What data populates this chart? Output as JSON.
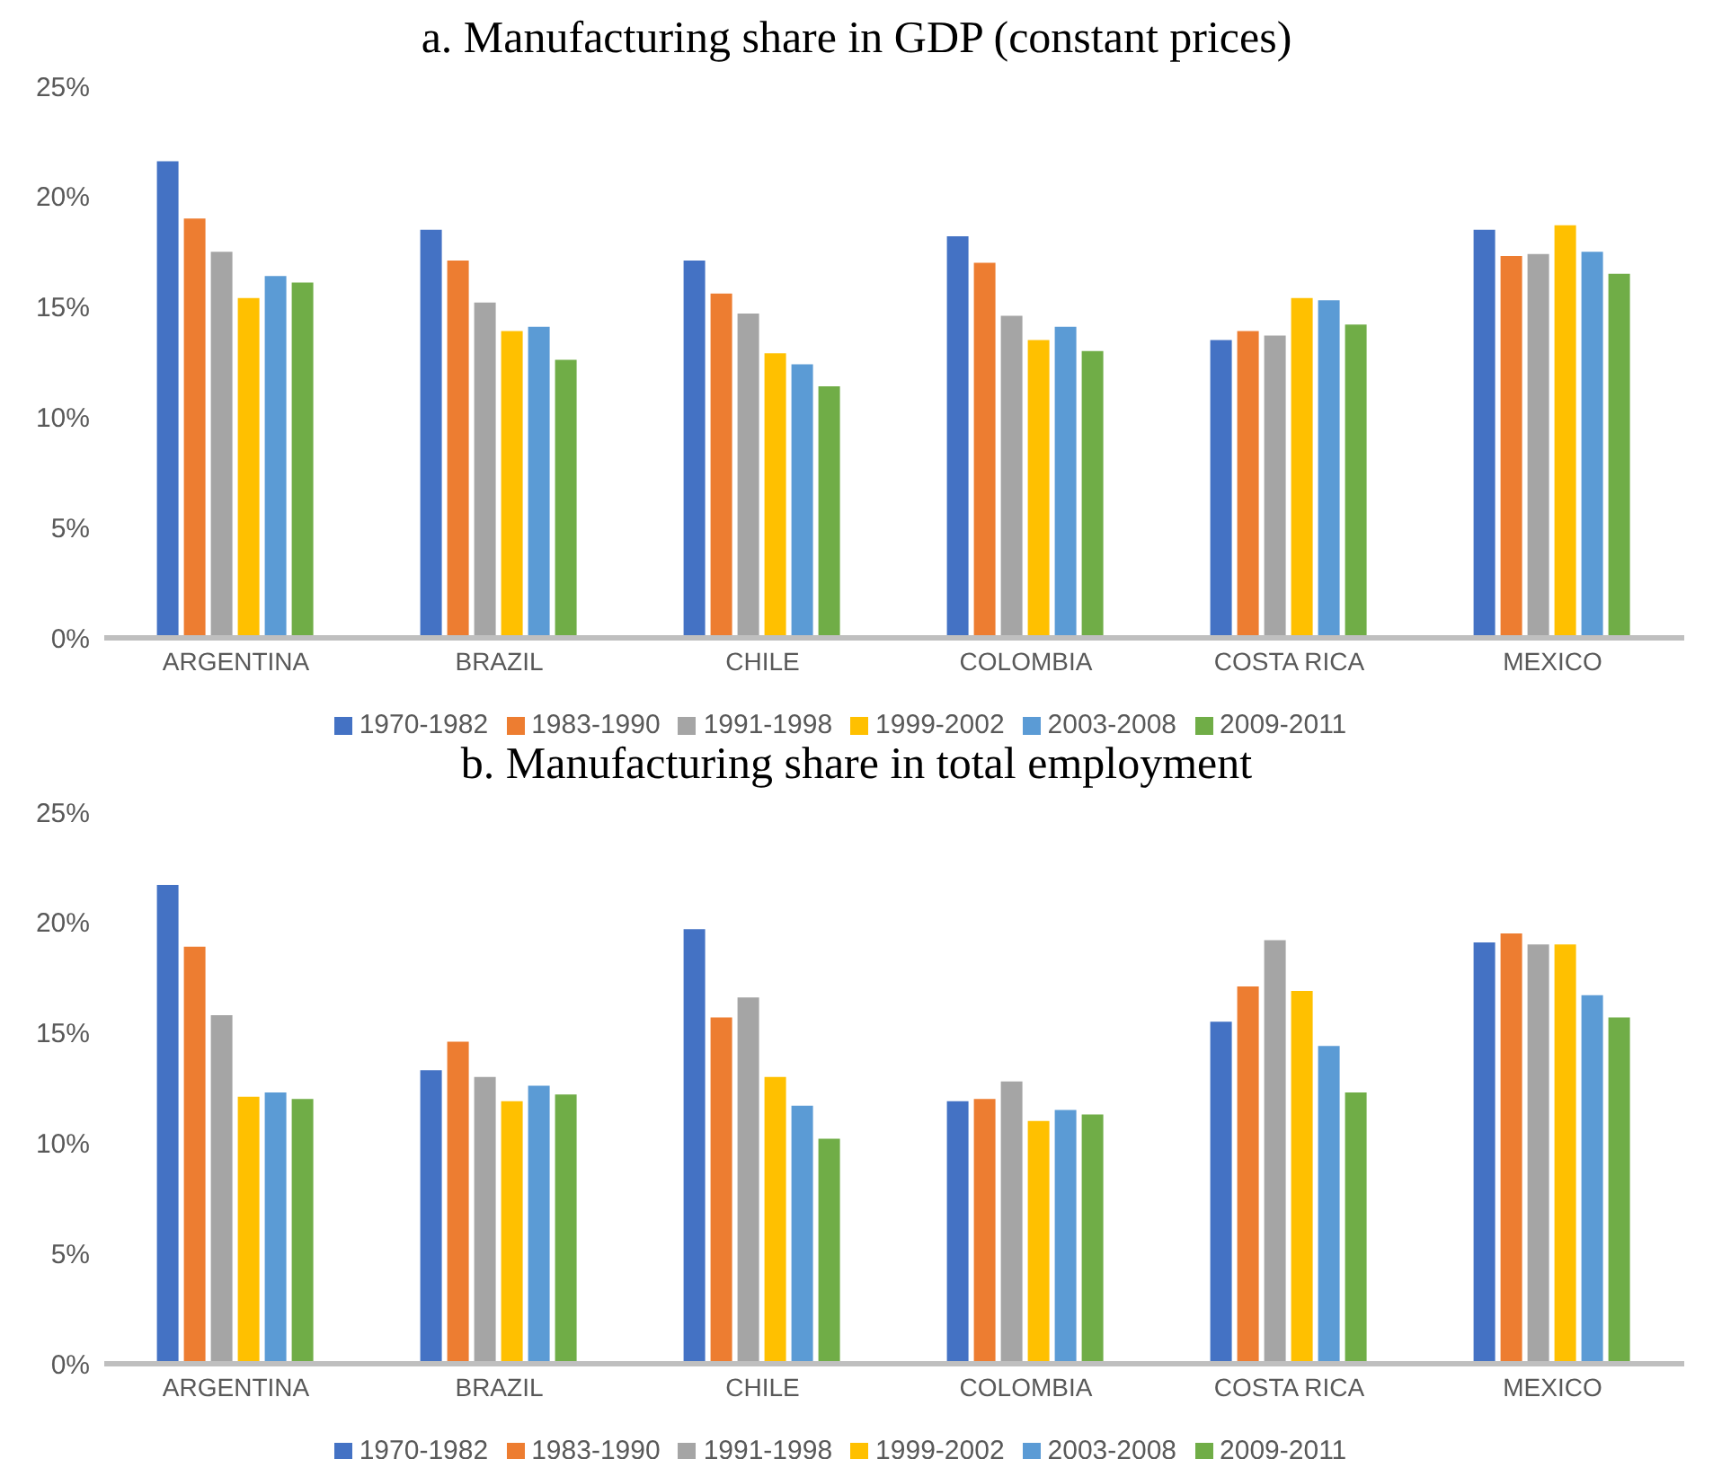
{
  "chart_data": [
    {
      "type": "bar",
      "title": "a. Manufacturing share in GDP (constant prices)",
      "categories": [
        "ARGENTINA",
        "BRAZIL",
        "CHILE",
        "COLOMBIA",
        "COSTA RICA",
        "MEXICO"
      ],
      "series": [
        {
          "name": "1970-1982",
          "color": "#4472c4",
          "values": [
            21.6,
            18.5,
            17.1,
            18.2,
            13.5,
            18.5
          ]
        },
        {
          "name": "1983-1990",
          "color": "#ed7d31",
          "values": [
            19.0,
            17.1,
            15.6,
            17.0,
            13.9,
            17.3
          ]
        },
        {
          "name": "1991-1998",
          "color": "#a5a5a5",
          "values": [
            17.5,
            15.2,
            14.7,
            14.6,
            13.7,
            17.4
          ]
        },
        {
          "name": "1999-2002",
          "color": "#ffc000",
          "values": [
            15.4,
            13.9,
            12.9,
            13.5,
            15.4,
            18.7
          ]
        },
        {
          "name": "2003-2008",
          "color": "#5b9bd5",
          "values": [
            16.4,
            14.1,
            12.4,
            14.1,
            15.3,
            17.5
          ]
        },
        {
          "name": "2009-2011",
          "color": "#70ad47",
          "values": [
            16.1,
            12.6,
            11.4,
            13.0,
            14.2,
            16.5
          ]
        }
      ],
      "ylim": [
        0,
        25
      ],
      "yticks": [
        {
          "value": 0,
          "label": "0%"
        },
        {
          "value": 5,
          "label": "5%"
        },
        {
          "value": 10,
          "label": "10%"
        },
        {
          "value": 15,
          "label": "15%"
        },
        {
          "value": 20,
          "label": "20%"
        },
        {
          "value": 25,
          "label": "25%"
        }
      ],
      "grid": false,
      "legend": "bottom"
    },
    {
      "type": "bar",
      "title": "b. Manufacturing share in total employment",
      "categories": [
        "ARGENTINA",
        "BRAZIL",
        "CHILE",
        "COLOMBIA",
        "COSTA RICA",
        "MEXICO"
      ],
      "series": [
        {
          "name": "1970-1982",
          "color": "#4472c4",
          "values": [
            21.7,
            13.3,
            19.7,
            11.9,
            15.5,
            19.1
          ]
        },
        {
          "name": "1983-1990",
          "color": "#ed7d31",
          "values": [
            18.9,
            14.6,
            15.7,
            12.0,
            17.1,
            19.5
          ]
        },
        {
          "name": "1991-1998",
          "color": "#a5a5a5",
          "values": [
            15.8,
            13.0,
            16.6,
            12.8,
            19.2,
            19.0
          ]
        },
        {
          "name": "1999-2002",
          "color": "#ffc000",
          "values": [
            12.1,
            11.9,
            13.0,
            11.0,
            16.9,
            19.0
          ]
        },
        {
          "name": "2003-2008",
          "color": "#5b9bd5",
          "values": [
            12.3,
            12.6,
            11.7,
            11.5,
            14.4,
            16.7
          ]
        },
        {
          "name": "2009-2011",
          "color": "#70ad47",
          "values": [
            12.0,
            12.2,
            10.2,
            11.3,
            12.3,
            15.7
          ]
        }
      ],
      "ylim": [
        0,
        25
      ],
      "yticks": [
        {
          "value": 0,
          "label": "0%"
        },
        {
          "value": 5,
          "label": "5%"
        },
        {
          "value": 10,
          "label": "10%"
        },
        {
          "value": 15,
          "label": "15%"
        },
        {
          "value": 20,
          "label": "20%"
        },
        {
          "value": 25,
          "label": "25%"
        }
      ],
      "grid": false,
      "legend": "bottom"
    }
  ]
}
